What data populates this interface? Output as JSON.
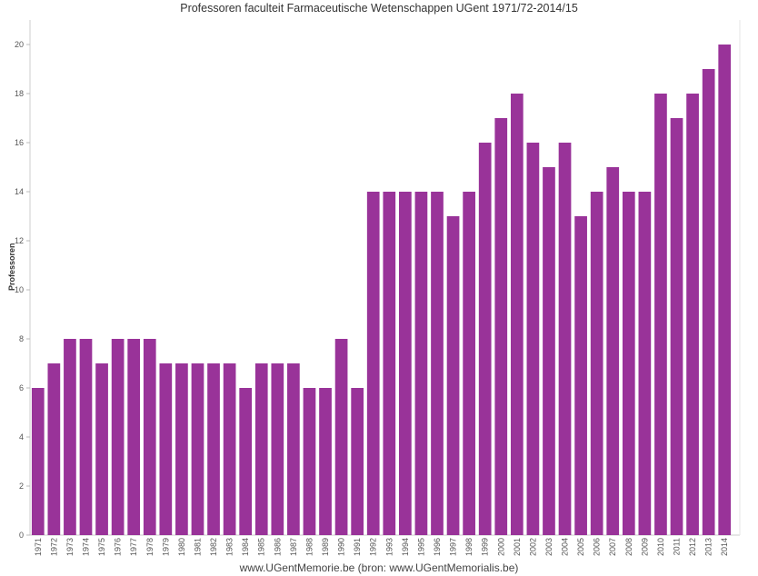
{
  "chart_data": {
    "type": "bar",
    "title": "Professoren faculteit Farmaceutische Wetenschappen UGent 1971/72-2014/15",
    "xlabel": "",
    "ylabel": "Professoren",
    "ylim": [
      0,
      21
    ],
    "yticks": [
      0,
      2,
      4,
      6,
      8,
      10,
      12,
      14,
      16,
      18,
      20
    ],
    "grid": false,
    "bar_color": "#993399",
    "categories": [
      "1971",
      "1972",
      "1973",
      "1974",
      "1975",
      "1976",
      "1977",
      "1978",
      "1979",
      "1980",
      "1981",
      "1982",
      "1983",
      "1984",
      "1985",
      "1986",
      "1987",
      "1988",
      "1989",
      "1990",
      "1991",
      "1992",
      "1993",
      "1994",
      "1995",
      "1996",
      "1997",
      "1998",
      "1999",
      "2000",
      "2001",
      "2002",
      "2003",
      "2004",
      "2005",
      "2006",
      "2007",
      "2008",
      "2009",
      "2010",
      "2011",
      "2012",
      "2013",
      "2014"
    ],
    "values": [
      6,
      7,
      8,
      8,
      7,
      8,
      8,
      8,
      7,
      7,
      7,
      7,
      7,
      6,
      7,
      7,
      7,
      6,
      6,
      8,
      6,
      14,
      14,
      14,
      14,
      14,
      13,
      14,
      16,
      17,
      18,
      16,
      15,
      16,
      13,
      14,
      15,
      14,
      14,
      18,
      17,
      18,
      19,
      20
    ]
  },
  "footer": "www.UGentMemorie.be (bron: www.UGentMemorialis.be)"
}
